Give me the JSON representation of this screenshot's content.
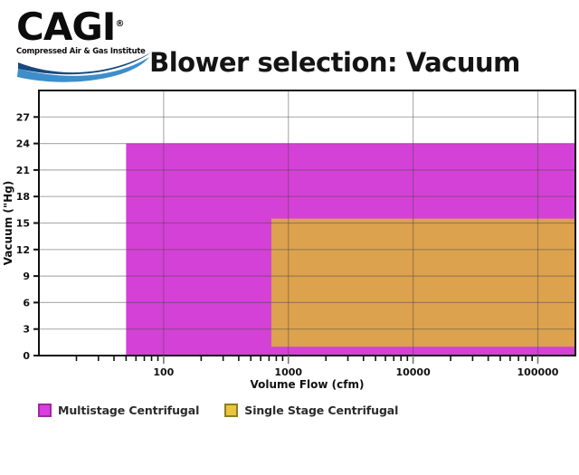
{
  "page": {
    "title": "Blower selection: Vacuum",
    "background": "#ffffff"
  },
  "logo": {
    "acronym": "CAGI",
    "registered_mark": "®",
    "tagline": "Compressed Air & Gas Institute",
    "swoosh_dark": "#17497f",
    "swoosh_light": "#3d8ec9"
  },
  "chart_data": {
    "type": "area",
    "title": "Blower selection: Vacuum",
    "xlabel": "Volume Flow (cfm)",
    "ylabel": "Vacuum (\"Hg)",
    "x_scale": "log",
    "xlim": [
      10,
      200000
    ],
    "ylim": [
      0,
      30
    ],
    "x_ticks": [
      100,
      1000,
      10000,
      100000
    ],
    "y_ticks": [
      0,
      3,
      6,
      9,
      12,
      15,
      18,
      21,
      24,
      27
    ],
    "grid": true,
    "legend_position": "bottom-left",
    "series": [
      {
        "name": "Multistage Centrifugal",
        "flow_cfm_min": 50,
        "flow_cfm_max": 200000,
        "vacuum_inhg_min": 0,
        "vacuum_inhg_max": 24,
        "color": "#d441d6"
      },
      {
        "name": "Single Stage Centrifugal",
        "flow_cfm_min": 730,
        "flow_cfm_max": 200000,
        "vacuum_inhg_min": 1,
        "vacuum_inhg_max": 15.5,
        "color": "#dca24e"
      }
    ]
  },
  "legend": {
    "items": [
      {
        "label": "Multistage Centrifugal",
        "swatch_color": "#d93ede",
        "swatch_border": "#9c2ba1"
      },
      {
        "label": "Single Stage Centrifugal",
        "swatch_color": "#e8c63e",
        "swatch_border": "#8f7d22"
      }
    ]
  }
}
